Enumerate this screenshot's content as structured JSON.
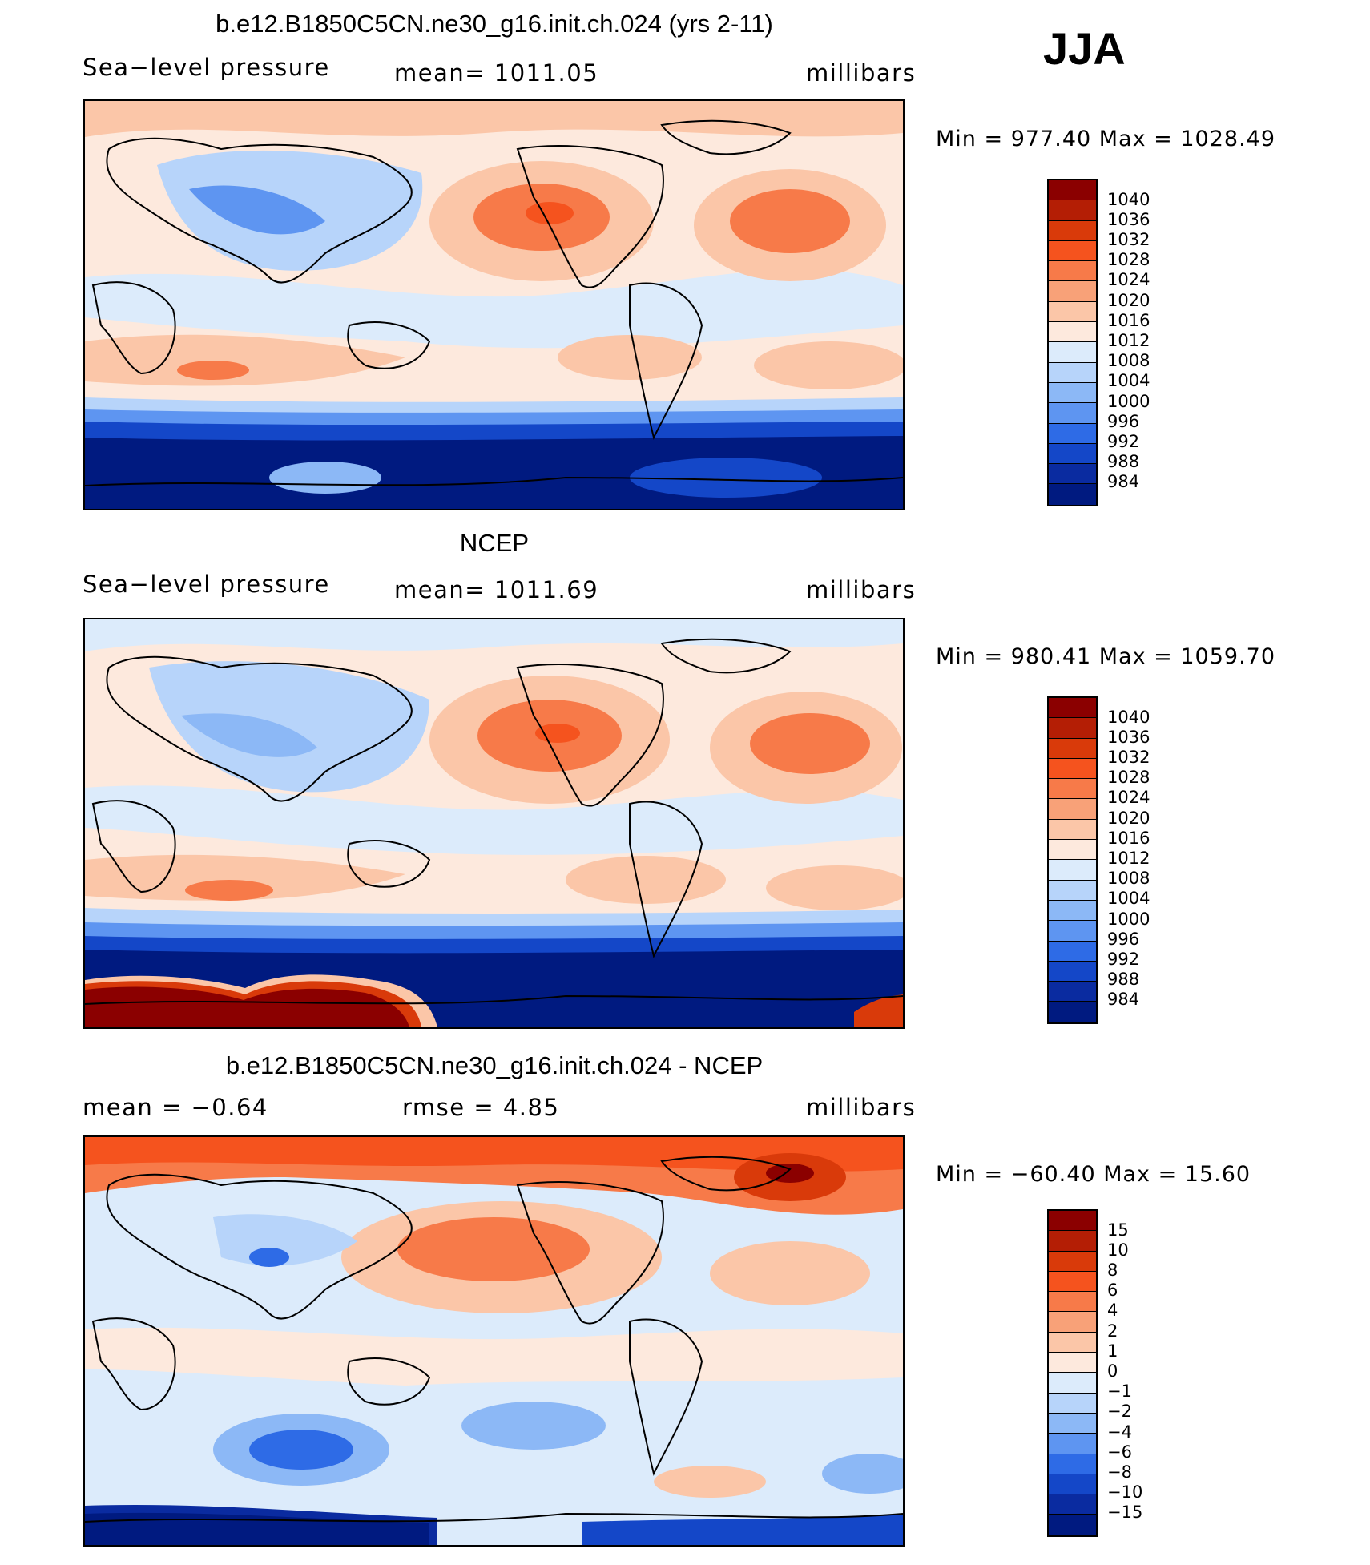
{
  "season": "JJA",
  "panels": [
    {
      "id": "model",
      "title": "b.e12.B1850C5CN.ne30_g16.init.ch.024 (yrs 2-11)",
      "left_label": "Sea−level pressure",
      "mid_label": "mean=  1011.05",
      "right_label": "millibars",
      "minmax": "Min  =  977.40  Max  =  1028.49",
      "colorbar": {
        "labels": [
          "1040",
          "1036",
          "1032",
          "1028",
          "1024",
          "1020",
          "1016",
          "1012",
          "1008",
          "1004",
          "1000",
          "996",
          "992",
          "988",
          "984"
        ],
        "colors": [
          "#8b0000",
          "#b41e05",
          "#d93a0a",
          "#f5531e",
          "#f77a49",
          "#f8a178",
          "#fbc6a8",
          "#fde9dd",
          "#dcebfb",
          "#b7d4fa",
          "#8cb8f6",
          "#5e95f1",
          "#2e6be6",
          "#1447c8",
          "#0a2ba0",
          "#001a80"
        ]
      },
      "fill_colors": {
        "deep_low": "#001a80",
        "low2": "#1447c8",
        "low1": "#5e95f1",
        "near": "#dcebfb",
        "high1": "#fbc6a8",
        "high2": "#f77a49",
        "high3": "#f5531e"
      }
    },
    {
      "id": "ncep",
      "title": "NCEP",
      "left_label": "Sea−level pressure",
      "mid_label": "mean=  1011.69",
      "right_label": "millibars",
      "minmax": "Min  =  980.41  Max  =  1059.70",
      "colorbar": {
        "labels": [
          "1040",
          "1036",
          "1032",
          "1028",
          "1024",
          "1020",
          "1016",
          "1012",
          "1008",
          "1004",
          "1000",
          "996",
          "992",
          "988",
          "984"
        ],
        "colors": [
          "#8b0000",
          "#b41e05",
          "#d93a0a",
          "#f5531e",
          "#f77a49",
          "#f8a178",
          "#fbc6a8",
          "#fde9dd",
          "#dcebfb",
          "#b7d4fa",
          "#8cb8f6",
          "#5e95f1",
          "#2e6be6",
          "#1447c8",
          "#0a2ba0",
          "#001a80"
        ]
      }
    },
    {
      "id": "diff",
      "title": "b.e12.B1850C5CN.ne30_g16.init.ch.024 - NCEP",
      "left_label": "mean  =     −0.64",
      "mid_label": "rmse  =     4.85",
      "right_label": "millibars",
      "minmax": "Min  =  −60.40  Max  =    15.60",
      "colorbar": {
        "labels": [
          "15",
          "10",
          "8",
          "6",
          "4",
          "2",
          "1",
          "0",
          "−1",
          "−2",
          "−4",
          "−6",
          "−8",
          "−10",
          "−15"
        ],
        "colors": [
          "#8b0000",
          "#b41e05",
          "#d93a0a",
          "#f5531e",
          "#f77a49",
          "#f8a178",
          "#fbc6a8",
          "#fde9dd",
          "#dcebfb",
          "#b7d4fa",
          "#8cb8f6",
          "#5e95f1",
          "#2e6be6",
          "#1447c8",
          "#0a2ba0",
          "#001a80"
        ]
      }
    }
  ]
}
